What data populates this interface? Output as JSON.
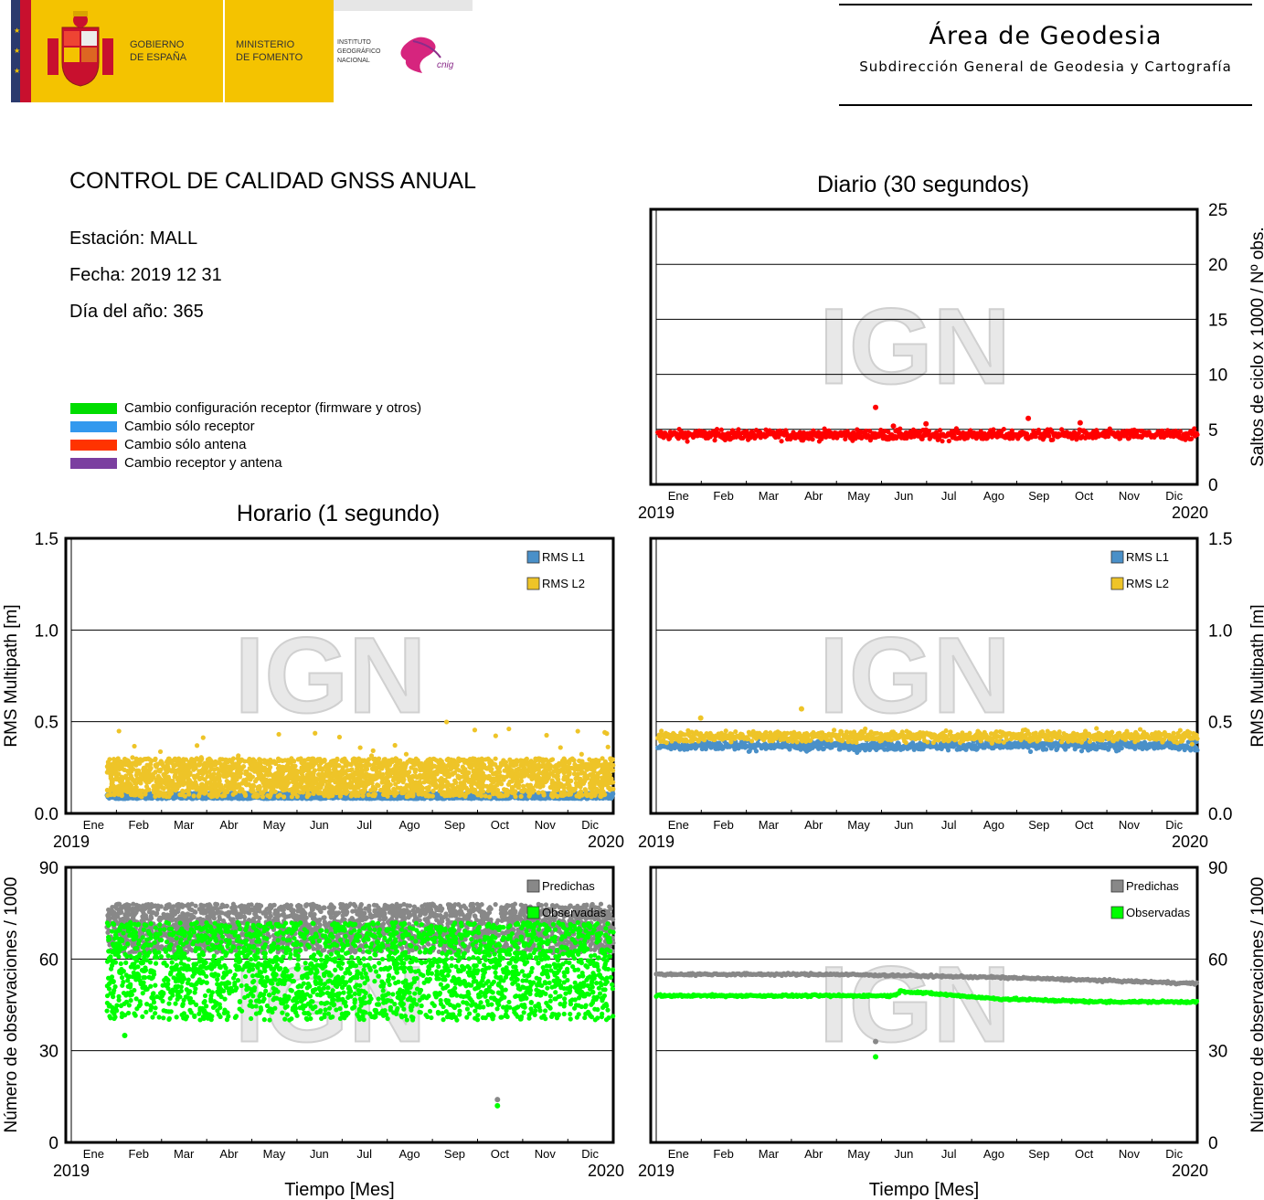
{
  "header": {
    "gov_text": [
      "GOBIERNO",
      "DE ESPAÑA"
    ],
    "ministry_text": [
      "MINISTERIO",
      "DE FOMENTO"
    ],
    "ign_text": [
      "INSTITUTO",
      "GEOGRÁFICO",
      "NACIONAL"
    ],
    "cnig_text": "cnig",
    "area_title": "Área de Geodesia",
    "area_subtitle": "Subdirección General de Geodesia y Cartografía",
    "colors": {
      "yellow": "#F4C300",
      "navy": "#2B3A6E",
      "red": "#C8102E",
      "magenta": "#D6257E"
    }
  },
  "report": {
    "title": "CONTROL DE CALIDAD GNSS ANUAL",
    "station": "Estación: MALL",
    "date": "Fecha: 2019 12 31",
    "doy": "Día del año: 365"
  },
  "legend": [
    {
      "label": "Cambio configuración receptor (firmware y otros)",
      "color": "#00DD00"
    },
    {
      "label": "Cambio sólo receptor",
      "color": "#3399EE"
    },
    {
      "label": "Cambio sólo antena",
      "color": "#FF3300"
    },
    {
      "label": "Cambio receptor y antena",
      "color": "#7B3FA0"
    }
  ],
  "sections": {
    "daily": "Diario (30 segundos)",
    "hourly": "Horario (1 segundo)"
  },
  "shared_axis": {
    "months": [
      "Ene",
      "Feb",
      "Mar",
      "Abr",
      "May",
      "Jun",
      "Jul",
      "Ago",
      "Sep",
      "Oct",
      "Nov",
      "Dic"
    ],
    "year_start": "2019",
    "year_end": "2020",
    "xlabel": "Tiempo [Mes]"
  },
  "watermark": "IGN",
  "chart_data": [
    {
      "id": "daily-cycle-slips",
      "type": "scatter",
      "section": "Diario (30 segundos)",
      "ylabel": "Saltos de ciclo x 1000 / Nº obs.",
      "ylim": [
        0,
        25
      ],
      "yticks": [
        "0",
        "5",
        "10",
        "15",
        "20",
        "25"
      ],
      "ytick_values": [
        0,
        5,
        10,
        15,
        20,
        25
      ],
      "xlim_days": [
        0,
        365
      ],
      "grid": true,
      "series": [
        {
          "color": "#FF0000",
          "base": 4.5,
          "noise": 0.45,
          "outliers": [
            {
              "x": 148,
              "y": 7.0
            },
            {
              "x": 251,
              "y": 6.0
            },
            {
              "x": 286,
              "y": 5.6
            },
            {
              "x": 182,
              "y": 5.5
            },
            {
              "x": 160,
              "y": 5.3
            }
          ]
        }
      ]
    },
    {
      "id": "hourly-rms-multipath",
      "type": "scatter",
      "section": "Horario (1 segundo)",
      "ylabel": "RMS Multipath [m]",
      "ylim": [
        0,
        1.5
      ],
      "yticks": [
        "0.0",
        "0.5",
        "1.0",
        "1.5"
      ],
      "ytick_values": [
        0,
        0.5,
        1.0,
        1.5
      ],
      "xlim_days": [
        0,
        365
      ],
      "data_start_day": 24,
      "grid": true,
      "series": [
        {
          "name": "RMS L1",
          "color": "#4A90C8",
          "band": [
            0.08,
            0.11
          ]
        },
        {
          "name": "RMS L2",
          "color": "#EEC428",
          "band": [
            0.09,
            0.3
          ],
          "max": 0.5
        }
      ]
    },
    {
      "id": "daily-rms-multipath",
      "type": "scatter",
      "ylabel": "RMS Multipath [m]",
      "ylim": [
        0,
        1.5
      ],
      "yticks": [
        "0.0",
        "0.5",
        "1.0",
        "1.5"
      ],
      "ytick_values": [
        0,
        0.5,
        1.0,
        1.5
      ],
      "xlim_days": [
        0,
        365
      ],
      "grid": true,
      "series": [
        {
          "name": "RMS L1",
          "color": "#4A90C8",
          "base": 0.37,
          "noise": 0.025
        },
        {
          "name": "RMS L2",
          "color": "#EEC428",
          "base": 0.42,
          "noise": 0.03,
          "outliers": [
            {
              "x": 30,
              "y": 0.52
            },
            {
              "x": 98,
              "y": 0.57
            }
          ]
        }
      ]
    },
    {
      "id": "hourly-observations",
      "type": "scatter",
      "ylabel": "Número de observaciones / 1000",
      "ylim": [
        0,
        90
      ],
      "yticks": [
        "0",
        "30",
        "60",
        "90"
      ],
      "ytick_values": [
        0,
        30,
        60,
        90
      ],
      "xlim_days": [
        0,
        365
      ],
      "data_start_day": 24,
      "grid": true,
      "series": [
        {
          "name": "Predichas",
          "color": "#888888",
          "band": [
            62,
            78
          ],
          "outliers": [
            {
              "x": 287,
              "y": 14
            }
          ]
        },
        {
          "name": "Observadas",
          "color": "#00FF00",
          "band": [
            40,
            72
          ],
          "outliers": [
            {
              "x": 287,
              "y": 12
            },
            {
              "x": 36,
              "y": 35
            }
          ]
        }
      ]
    },
    {
      "id": "daily-observations",
      "type": "scatter",
      "ylabel": "Número de observaciones / 1000",
      "ylim": [
        0,
        90
      ],
      "yticks": [
        "0",
        "30",
        "60",
        "90"
      ],
      "ytick_values": [
        0,
        30,
        60,
        90
      ],
      "xlim_days": [
        0,
        365
      ],
      "grid": true,
      "series": [
        {
          "name": "Predichas",
          "color": "#888888",
          "segments": [
            [
              0,
              55
            ],
            [
              120,
              55
            ],
            [
              230,
              54
            ],
            [
              300,
              53
            ],
            [
              365,
              52
            ]
          ],
          "outliers": [
            {
              "x": 148,
              "y": 33
            }
          ]
        },
        {
          "name": "Observadas",
          "color": "#00FF00",
          "segments": [
            [
              0,
              48
            ],
            [
              160,
              48
            ],
            [
              165,
              49.5
            ],
            [
              230,
              47
            ],
            [
              300,
              46
            ],
            [
              365,
              46
            ]
          ],
          "outliers": [
            {
              "x": 148,
              "y": 28
            }
          ]
        }
      ]
    }
  ]
}
